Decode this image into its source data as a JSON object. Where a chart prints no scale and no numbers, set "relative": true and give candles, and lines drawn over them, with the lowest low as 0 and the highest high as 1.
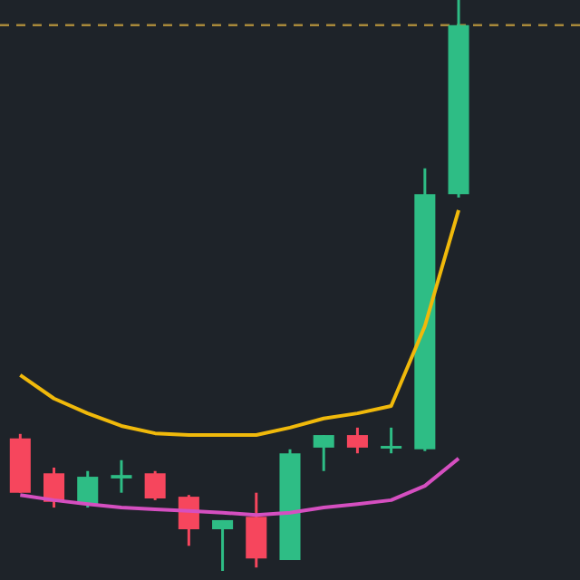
{
  "chart_data": {
    "type": "candlestick",
    "relative": true,
    "categories": [
      null,
      null,
      null,
      null,
      null,
      null,
      null,
      null,
      null,
      null,
      null,
      null,
      null,
      null
    ],
    "ohlc": [
      [
        0.232,
        0.24,
        0.137,
        0.137
      ],
      [
        0.171,
        0.181,
        0.111,
        0.121
      ],
      [
        0.117,
        0.175,
        0.111,
        0.165
      ],
      [
        0.162,
        0.194,
        0.137,
        0.168
      ],
      [
        0.171,
        0.175,
        0.124,
        0.127
      ],
      [
        0.13,
        0.133,
        0.044,
        0.073
      ],
      [
        0.073,
        0.089,
        0,
        0.089
      ],
      [
        0.095,
        0.137,
        0.006,
        0.022
      ],
      [
        0.019,
        0.213,
        0.019,
        0.206
      ],
      [
        0.216,
        0.238,
        0.175,
        0.238
      ],
      [
        0.238,
        0.251,
        0.206,
        0.216
      ],
      [
        0.216,
        0.251,
        0.206,
        0.219
      ],
      [
        0.213,
        0.705,
        0.21,
        0.66
      ],
      [
        0.66,
        1,
        0.654,
        0.956
      ]
    ],
    "colors": [
      "#f6465d",
      "#f6465d",
      "#2ebd85",
      "#2ebd85",
      "#f6465d",
      "#f6465d",
      "#2ebd85",
      "#f6465d",
      "#2ebd85",
      "#2ebd85",
      "#f6465d",
      "#2ebd85",
      "#2ebd85",
      "#2ebd85"
    ],
    "series": [
      {
        "type": "line",
        "color": "#f0b90b",
        "values": [
          0.343,
          0.302,
          0.276,
          0.254,
          0.241,
          0.238,
          0.238,
          0.238,
          0.251,
          0.267,
          0.276,
          0.289,
          0.429,
          0.632
        ]
      },
      {
        "type": "line",
        "color": "#d54fc0",
        "values": [
          0.133,
          0.124,
          0.117,
          0.111,
          0.108,
          0.105,
          0.102,
          0.098,
          0.102,
          0.111,
          0.117,
          0.124,
          0.149,
          0.197
        ]
      }
    ],
    "ref_lines": [
      {
        "axis": "y",
        "value": 0.956,
        "color": "#a8893a",
        "line_style": "dashed"
      }
    ],
    "legend": false
  }
}
